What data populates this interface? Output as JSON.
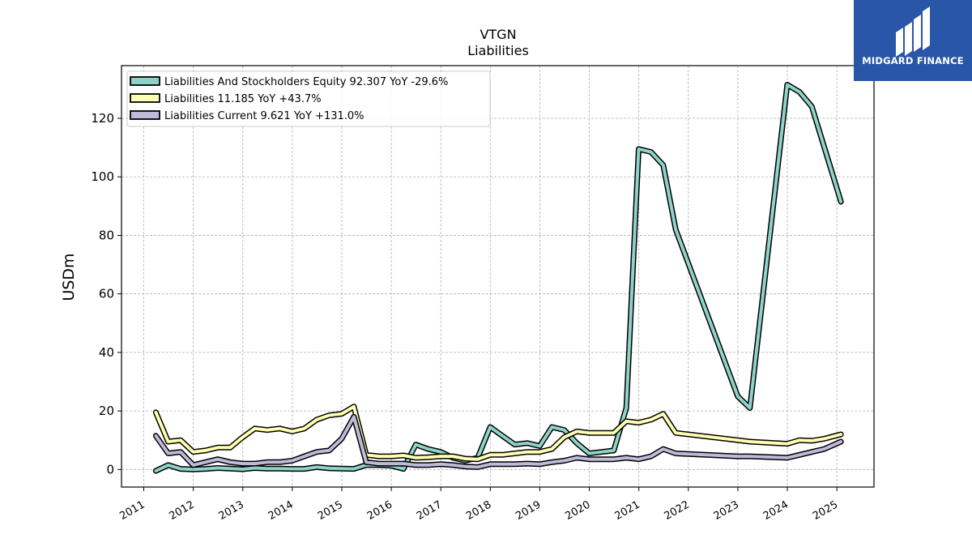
{
  "branding": {
    "name": "MIDGARD FINANCE",
    "background": "#2a56a8",
    "icon": "midgard-m-icon"
  },
  "chart_data": {
    "type": "line",
    "title": "VTGN",
    "subtitle": "Liabilities",
    "ylabel": "USDm",
    "xlabel": "",
    "ylim": [
      -6,
      138
    ],
    "xlim": [
      2010.55,
      2025.75
    ],
    "grid": true,
    "legend_position": "top-left",
    "x_ticks": [
      "2011",
      "2012",
      "2013",
      "2014",
      "2015",
      "2016",
      "2017",
      "2018",
      "2019",
      "2020",
      "2021",
      "2022",
      "2023",
      "2024",
      "2025"
    ],
    "y_ticks": [
      "0",
      "20",
      "40",
      "60",
      "80",
      "100",
      "120"
    ],
    "series": [
      {
        "name": "Liabilities And Stockholders Equity",
        "legend_label": "Liabilities And Stockholders Equity  92.307 YoY -29.6%",
        "color": "#8dd3c7",
        "x": [
          "2011-03-31",
          "2011-06-30",
          "2011-09-30",
          "2011-12-31",
          "2012-03-31",
          "2012-06-30",
          "2012-09-30",
          "2012-12-31",
          "2013-03-31",
          "2013-06-30",
          "2013-09-30",
          "2013-12-31",
          "2014-03-31",
          "2014-06-30",
          "2014-09-30",
          "2014-12-31",
          "2015-03-31",
          "2015-06-30",
          "2015-09-30",
          "2015-12-31",
          "2016-03-31",
          "2016-06-30",
          "2016-09-30",
          "2016-12-31",
          "2017-03-31",
          "2017-06-30",
          "2017-09-30",
          "2017-12-31",
          "2018-03-31",
          "2018-06-30",
          "2018-09-30",
          "2018-12-31",
          "2019-03-31",
          "2019-06-30",
          "2019-09-30",
          "2019-12-31",
          "2020-03-31",
          "2020-06-30",
          "2020-09-30",
          "2020-12-31",
          "2021-03-31",
          "2021-06-30",
          "2021-09-30",
          "2022-12-31",
          "2023-03-31",
          "2023-12-31",
          "2024-03-31",
          "2024-06-30",
          "2025-01-31"
        ],
        "values": [
          -0.5,
          1.5,
          0.2,
          0.0,
          0.2,
          0.5,
          0.3,
          0.1,
          0.5,
          0.3,
          0.3,
          0.2,
          0.2,
          0.8,
          0.4,
          0.3,
          0.2,
          1.5,
          1.5,
          1.3,
          0.2,
          8.5,
          7.0,
          6.0,
          4.0,
          3.0,
          4.0,
          14.5,
          11.5,
          8.5,
          9.0,
          8.0,
          14.5,
          13.5,
          9.0,
          5.5,
          6.0,
          6.5,
          21.0,
          109.5,
          108.5,
          104.0,
          82.0,
          25.0,
          21.0,
          131.5,
          129.0,
          124.0,
          91.5
        ]
      },
      {
        "name": "Liabilities",
        "legend_label": "Liabilities  11.185 YoY +43.7%",
        "color": "#ffffb3",
        "x": [
          "2011-03-31",
          "2011-06-30",
          "2011-09-30",
          "2011-12-31",
          "2012-03-31",
          "2012-06-30",
          "2012-09-30",
          "2012-12-31",
          "2013-03-31",
          "2013-06-30",
          "2013-09-30",
          "2013-12-31",
          "2014-03-31",
          "2014-06-30",
          "2014-09-30",
          "2014-12-31",
          "2015-03-31",
          "2015-06-30",
          "2015-09-30",
          "2015-12-31",
          "2016-03-31",
          "2016-06-30",
          "2016-09-30",
          "2016-12-31",
          "2017-03-31",
          "2017-06-30",
          "2017-09-30",
          "2017-12-31",
          "2018-03-31",
          "2018-06-30",
          "2018-09-30",
          "2018-12-31",
          "2019-03-31",
          "2019-06-30",
          "2019-09-30",
          "2019-12-31",
          "2020-03-31",
          "2020-06-30",
          "2020-09-30",
          "2020-12-31",
          "2021-03-31",
          "2021-06-30",
          "2021-09-30",
          "2022-12-31",
          "2023-03-31",
          "2023-12-31",
          "2024-03-31",
          "2024-06-30",
          "2024-09-30",
          "2025-01-31"
        ],
        "values": [
          19.5,
          9.5,
          10.0,
          6.0,
          6.5,
          7.5,
          7.5,
          11.0,
          14.0,
          13.5,
          14.0,
          13.0,
          14.0,
          17.0,
          18.5,
          19.0,
          21.5,
          5.0,
          4.5,
          4.5,
          4.8,
          4.0,
          4.2,
          4.5,
          4.5,
          3.7,
          3.5,
          5.0,
          5.0,
          5.5,
          6.0,
          6.0,
          7.0,
          11.0,
          13.0,
          12.5,
          12.5,
          12.5,
          16.5,
          16.0,
          17.0,
          19.0,
          12.5,
          10.0,
          9.5,
          8.8,
          10.0,
          9.8,
          10.5,
          12.0
        ]
      },
      {
        "name": "Liabilities Current",
        "legend_label": "Liabilities Current  9.621 YoY +131.0%",
        "color": "#bebada",
        "x": [
          "2011-03-31",
          "2011-06-30",
          "2011-09-30",
          "2011-12-31",
          "2012-03-31",
          "2012-06-30",
          "2012-09-30",
          "2012-12-31",
          "2013-03-31",
          "2013-06-30",
          "2013-09-30",
          "2013-12-31",
          "2014-03-31",
          "2014-06-30",
          "2014-09-30",
          "2014-12-31",
          "2015-03-31",
          "2015-06-30",
          "2015-09-30",
          "2015-12-31",
          "2016-03-31",
          "2016-06-30",
          "2016-09-30",
          "2016-12-31",
          "2017-03-31",
          "2017-06-30",
          "2017-09-30",
          "2017-12-31",
          "2018-03-31",
          "2018-06-30",
          "2018-09-30",
          "2018-12-31",
          "2019-03-31",
          "2019-06-30",
          "2019-09-30",
          "2019-12-31",
          "2020-03-31",
          "2020-06-30",
          "2020-09-30",
          "2020-12-31",
          "2021-03-31",
          "2021-06-30",
          "2021-09-30",
          "2022-12-31",
          "2023-03-31",
          "2023-12-31",
          "2024-03-31",
          "2024-06-30",
          "2024-09-30",
          "2025-01-31"
        ],
        "values": [
          11.5,
          5.5,
          6.0,
          1.5,
          2.5,
          3.5,
          2.5,
          2.0,
          2.0,
          2.5,
          2.5,
          3.0,
          4.5,
          6.0,
          6.5,
          10.5,
          18.0,
          2.5,
          2.0,
          2.0,
          2.0,
          1.5,
          1.5,
          1.8,
          1.5,
          1.0,
          0.8,
          1.8,
          1.8,
          1.8,
          2.0,
          1.8,
          2.5,
          3.0,
          4.0,
          3.5,
          3.5,
          3.5,
          4.0,
          3.5,
          4.5,
          7.0,
          5.5,
          4.5,
          4.5,
          4.0,
          5.0,
          6.0,
          7.0,
          9.5
        ]
      }
    ]
  }
}
